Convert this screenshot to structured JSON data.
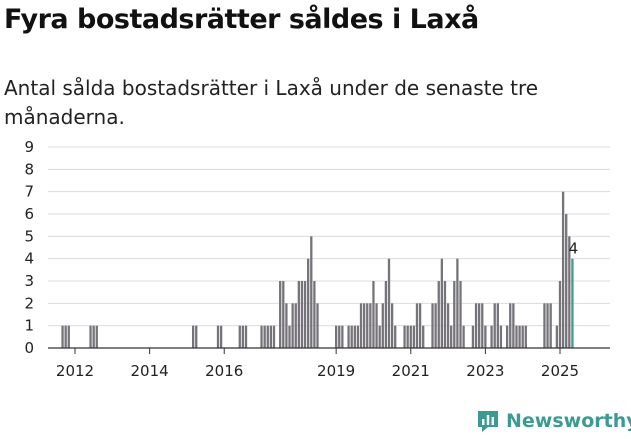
{
  "chart_data": {
    "type": "bar",
    "title": "Fyra bostadsrätter såldes i Laxå",
    "subtitle": "Antal sålda bostadsrätter i Laxå under de senaste tre månaderna.",
    "ylim": [
      0,
      9
    ],
    "yticks": [
      "0",
      "1",
      "2",
      "3",
      "4",
      "5",
      "6",
      "7",
      "8",
      "9"
    ],
    "xticks": [
      "2012",
      "2014",
      "2016",
      "2019",
      "2021",
      "2023",
      "2025"
    ],
    "grid": true,
    "bar_color": "#76747a",
    "highlight_color": "#3e9b8f",
    "highlight_label": "4",
    "series": [
      {
        "x": "2011-09",
        "y": 1
      },
      {
        "x": "2011-10",
        "y": 1
      },
      {
        "x": "2011-11",
        "y": 1
      },
      {
        "x": "2012-06",
        "y": 1
      },
      {
        "x": "2012-07",
        "y": 1
      },
      {
        "x": "2012-08",
        "y": 1
      },
      {
        "x": "2015-03",
        "y": 1
      },
      {
        "x": "2015-04",
        "y": 1
      },
      {
        "x": "2015-11",
        "y": 1
      },
      {
        "x": "2015-12",
        "y": 1
      },
      {
        "x": "2016-06",
        "y": 1
      },
      {
        "x": "2016-07",
        "y": 1
      },
      {
        "x": "2016-08",
        "y": 1
      },
      {
        "x": "2017-01",
        "y": 1
      },
      {
        "x": "2017-02",
        "y": 1
      },
      {
        "x": "2017-03",
        "y": 1
      },
      {
        "x": "2017-04",
        "y": 1
      },
      {
        "x": "2017-05",
        "y": 1
      },
      {
        "x": "2017-07",
        "y": 3
      },
      {
        "x": "2017-08",
        "y": 3
      },
      {
        "x": "2017-09",
        "y": 2
      },
      {
        "x": "2017-10",
        "y": 1
      },
      {
        "x": "2017-11",
        "y": 2
      },
      {
        "x": "2017-12",
        "y": 2
      },
      {
        "x": "2018-01",
        "y": 3
      },
      {
        "x": "2018-02",
        "y": 3
      },
      {
        "x": "2018-03",
        "y": 3
      },
      {
        "x": "2018-04",
        "y": 4
      },
      {
        "x": "2018-05",
        "y": 5
      },
      {
        "x": "2018-06",
        "y": 3
      },
      {
        "x": "2018-07",
        "y": 2
      },
      {
        "x": "2019-01",
        "y": 1
      },
      {
        "x": "2019-02",
        "y": 1
      },
      {
        "x": "2019-03",
        "y": 1
      },
      {
        "x": "2019-05",
        "y": 1
      },
      {
        "x": "2019-06",
        "y": 1
      },
      {
        "x": "2019-07",
        "y": 1
      },
      {
        "x": "2019-08",
        "y": 1
      },
      {
        "x": "2019-09",
        "y": 2
      },
      {
        "x": "2019-10",
        "y": 2
      },
      {
        "x": "2019-11",
        "y": 2
      },
      {
        "x": "2019-12",
        "y": 2
      },
      {
        "x": "2020-01",
        "y": 3
      },
      {
        "x": "2020-02",
        "y": 2
      },
      {
        "x": "2020-03",
        "y": 1
      },
      {
        "x": "2020-04",
        "y": 2
      },
      {
        "x": "2020-05",
        "y": 3
      },
      {
        "x": "2020-06",
        "y": 4
      },
      {
        "x": "2020-07",
        "y": 2
      },
      {
        "x": "2020-08",
        "y": 1
      },
      {
        "x": "2020-11",
        "y": 1
      },
      {
        "x": "2020-12",
        "y": 1
      },
      {
        "x": "2021-01",
        "y": 1
      },
      {
        "x": "2021-02",
        "y": 1
      },
      {
        "x": "2021-03",
        "y": 2
      },
      {
        "x": "2021-04",
        "y": 2
      },
      {
        "x": "2021-05",
        "y": 1
      },
      {
        "x": "2021-08",
        "y": 2
      },
      {
        "x": "2021-09",
        "y": 2
      },
      {
        "x": "2021-10",
        "y": 3
      },
      {
        "x": "2021-11",
        "y": 4
      },
      {
        "x": "2021-12",
        "y": 3
      },
      {
        "x": "2022-01",
        "y": 2
      },
      {
        "x": "2022-02",
        "y": 1
      },
      {
        "x": "2022-03",
        "y": 3
      },
      {
        "x": "2022-04",
        "y": 4
      },
      {
        "x": "2022-05",
        "y": 3
      },
      {
        "x": "2022-06",
        "y": 1
      },
      {
        "x": "2022-09",
        "y": 1
      },
      {
        "x": "2022-10",
        "y": 2
      },
      {
        "x": "2022-11",
        "y": 2
      },
      {
        "x": "2022-12",
        "y": 2
      },
      {
        "x": "2023-01",
        "y": 1
      },
      {
        "x": "2023-03",
        "y": 1
      },
      {
        "x": "2023-04",
        "y": 2
      },
      {
        "x": "2023-05",
        "y": 2
      },
      {
        "x": "2023-06",
        "y": 1
      },
      {
        "x": "2023-08",
        "y": 1
      },
      {
        "x": "2023-09",
        "y": 2
      },
      {
        "x": "2023-10",
        "y": 2
      },
      {
        "x": "2023-11",
        "y": 1
      },
      {
        "x": "2023-12",
        "y": 1
      },
      {
        "x": "2024-01",
        "y": 1
      },
      {
        "x": "2024-02",
        "y": 1
      },
      {
        "x": "2024-08",
        "y": 2
      },
      {
        "x": "2024-09",
        "y": 2
      },
      {
        "x": "2024-10",
        "y": 2
      },
      {
        "x": "2024-12",
        "y": 1
      },
      {
        "x": "2025-01",
        "y": 3
      },
      {
        "x": "2025-02",
        "y": 7
      },
      {
        "x": "2025-03",
        "y": 6
      },
      {
        "x": "2025-04",
        "y": 5
      },
      {
        "x": "2025-05",
        "y": 4
      }
    ]
  },
  "brand": {
    "name": "Newsworthy",
    "icon": "bar-chart-icon",
    "color": "#3c9a92"
  }
}
